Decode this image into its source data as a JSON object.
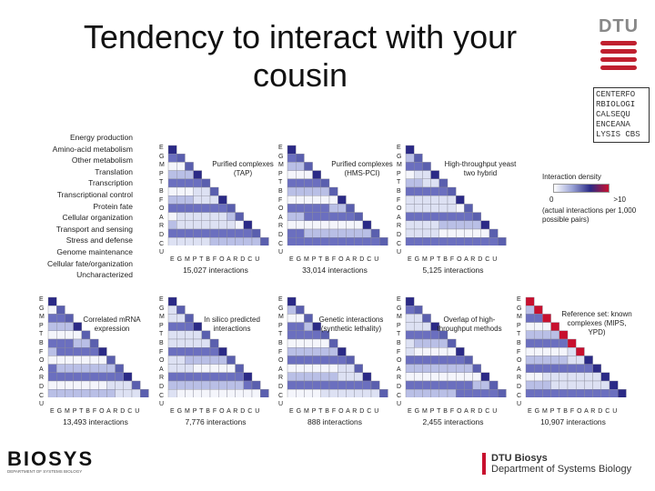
{
  "title": "Tendency to interact with your cousin",
  "dtu_logo": "DTU",
  "cbs_logo": [
    "CENTERFO",
    "RBIOLOGI",
    "CALSEQU",
    "ENCEANA",
    "LYSIS CBS"
  ],
  "categories": [
    "Energy production",
    "Amino-acid metabolism",
    "Other metabolism",
    "Translation",
    "Transcription",
    "Transcriptional control",
    "Protein fate",
    "Cellular organization",
    "Transport and sensing",
    "Stress and defense",
    "Genome maintenance",
    "Cellular fate/organization",
    "Uncharacterized"
  ],
  "axis_letters": [
    "E",
    "G",
    "M",
    "P",
    "T",
    "B",
    "F",
    "O",
    "A",
    "R",
    "D",
    "C",
    "U"
  ],
  "x_letters": "EGMPTBFOARDCU",
  "panels": [
    {
      "label": "Purified complexes (TAP)",
      "count": "15,027 interactions"
    },
    {
      "label": "Purified complexes (HMS-PCI)",
      "count": "33,014 interactions"
    },
    {
      "label": "High-throughput yeast two hybrid",
      "count": "5,125 interactions"
    },
    {
      "label": "Correlated mRNA expression",
      "count": "13,493 interactions"
    },
    {
      "label": "In silico predicted interactions",
      "count": "7,776 interactions"
    },
    {
      "label": "Genetic interactions (synthetic lethality)",
      "count": "888 interactions"
    },
    {
      "label": "Overlap of high-throughput methods",
      "count": "2,455 interactions"
    },
    {
      "label": "Reference set: known complexes (MIPS, YPD)",
      "count": "10,907 interactions"
    }
  ],
  "legend": {
    "title": "Interaction density",
    "min": "0",
    "max": ">10",
    "note": "(actual interactions per 1,000 possible pairs)"
  },
  "footer": {
    "left_logo": "BIOSYS",
    "left_sub": "DEPARTMENT OF SYSTEMS BIOLOGY",
    "right_line1": "DTU Biosys",
    "right_line2": "Department of Systems Biology"
  },
  "colors": {
    "accent": "#c8102e",
    "high": "#2b2a86",
    "mid": "#9aa3d6"
  }
}
